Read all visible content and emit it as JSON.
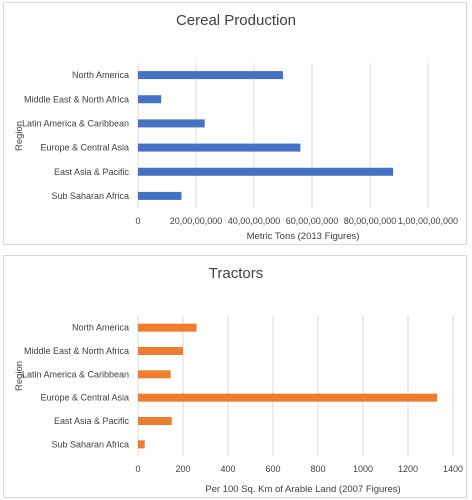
{
  "chart_data": [
    {
      "type": "bar",
      "orientation": "horizontal",
      "title": "Cereal Production",
      "xlabel": "Metric Tons (2013 Figures)",
      "ylabel": "Region",
      "categories": [
        "North America",
        "Middle East & North Africa",
        "Latin America & Caribbean",
        "Europe & Central Asia",
        "East Asia & Pacific",
        "Sub Saharan Africa"
      ],
      "values": [
        500000000,
        80000000,
        230000000,
        560000000,
        880000000,
        150000000
      ],
      "xlim": [
        0,
        1000000000
      ],
      "ticks": [
        0,
        200000000,
        400000000,
        600000000,
        800000000,
        1000000000
      ],
      "tick_labels": [
        "0",
        "20,00,00,000",
        "40,00,00,000",
        "60,00,00,000",
        "80,00,00,000",
        "1,00,00,00,000"
      ],
      "color": "#4472c4",
      "grid": true
    },
    {
      "type": "bar",
      "orientation": "horizontal",
      "title": "Tractors",
      "xlabel": "Per 100 Sq. Km of Arable Land (2007 Figures)",
      "ylabel": "Region",
      "categories": [
        "North America",
        "Middle East & North Africa",
        "Latin America & Caribbean",
        "Europe & Central Asia",
        "East Asia & Pacific",
        "Sub Saharan Africa"
      ],
      "values": [
        260,
        200,
        145,
        1330,
        150,
        30
      ],
      "xlim": [
        0,
        1400
      ],
      "ticks": [
        0,
        200,
        400,
        600,
        800,
        1000,
        1200,
        1400
      ],
      "tick_labels": [
        "0",
        "200",
        "400",
        "600",
        "800",
        "1000",
        "1200",
        "1400"
      ],
      "color": "#ed7d31",
      "grid": true
    }
  ]
}
